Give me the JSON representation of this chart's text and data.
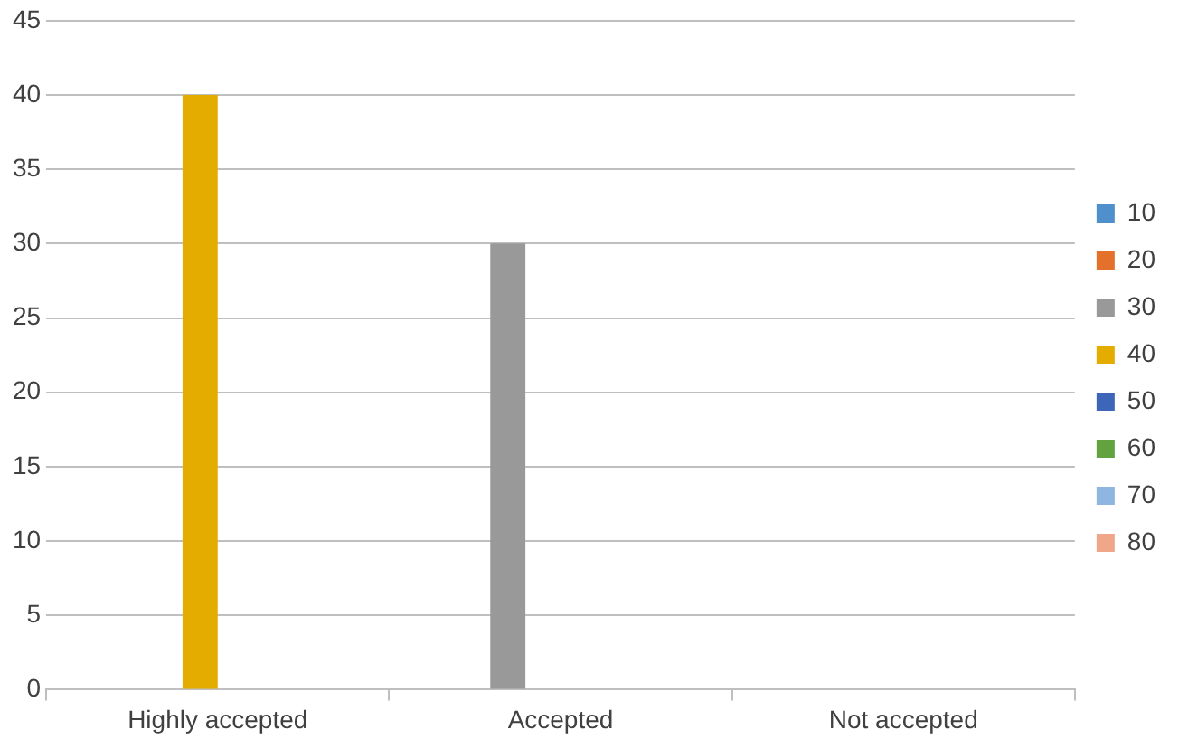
{
  "chart_data": {
    "type": "bar",
    "categories": [
      "Highly accepted",
      "Accepted",
      "Not accepted"
    ],
    "series": [
      {
        "name": "10",
        "color": "#4e8fcc",
        "values": [
          null,
          null,
          null
        ]
      },
      {
        "name": "20",
        "color": "#e3702b",
        "values": [
          null,
          null,
          null
        ]
      },
      {
        "name": "30",
        "color": "#999999",
        "values": [
          null,
          30,
          null
        ]
      },
      {
        "name": "40",
        "color": "#e5ac00",
        "values": [
          40,
          null,
          null
        ]
      },
      {
        "name": "50",
        "color": "#3d66b8",
        "values": [
          null,
          null,
          null
        ]
      },
      {
        "name": "60",
        "color": "#63a33f",
        "values": [
          null,
          null,
          null
        ]
      },
      {
        "name": "70",
        "color": "#8fb6e0",
        "values": [
          null,
          null,
          null
        ]
      },
      {
        "name": "80",
        "color": "#f0a688",
        "values": [
          null,
          null,
          null
        ]
      }
    ],
    "ylim": [
      0,
      45
    ],
    "yticks": [
      0,
      5,
      10,
      15,
      20,
      25,
      30,
      35,
      40,
      45
    ],
    "grid": "y",
    "legend": "right"
  }
}
